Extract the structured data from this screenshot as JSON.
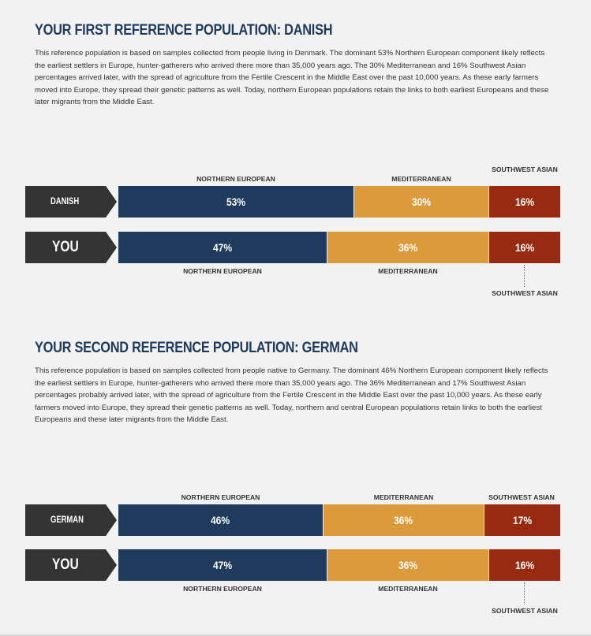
{
  "section1": {
    "heading": "YOUR FIRST REFERENCE POPULATION: DANISH",
    "paragraph": "This reference population is based on samples collected from people living in Denmark. The dominant 53% Northern European component likely reflects the earliest settlers in Europe, hunter-gatherers who arrived there more than 35,000 years ago. The 30% Mediterranean and 16% Southwest Asian percentages arrived later, with the spread of agriculture from the Fertile Crescent in the Middle East over the past 10,000 years.  As these early farmers moved into Europe, they spread their genetic patterns as well.  Today, northern European populations retain the links to both earliest Europeans and these later migrants from the Middle East.",
    "top_labels": {
      "northern": "NORTHERN EUROPEAN",
      "mediterranean": "MEDITERRANEAN",
      "southwest": "SOUTHWEST ASIAN"
    },
    "reference_bar": {
      "label": "DANISH",
      "northern": "53%",
      "mediterranean": "30%",
      "southwest": "16%"
    },
    "you_bar": {
      "label": "YOU",
      "northern": "47%",
      "mediterranean": "36%",
      "southwest": "16%"
    },
    "bottom_labels": {
      "northern": "NORTHERN EUROPEAN",
      "mediterranean": "MEDITERRANEAN",
      "southwest": "SOUTHWEST ASIAN"
    }
  },
  "section2": {
    "heading": "YOUR SECOND REFERENCE POPULATION: GERMAN",
    "paragraph": "This reference population is based on samples collected from people native to Germany. The dominant 46% Northern European component likely reflects the earliest settlers in Europe, hunter-gatherers who arrived there more than 35,000 years ago. The 36% Mediterranean and 17% Southwest Asian percentages probably arrived later, with the spread of agriculture from the Fertile Crescent in the Middle East over the past 10,000 years. As these early farmers moved into Europe, they spread their genetic patterns as well. Today, northern and central European populations retain links to both the earliest Europeans and these later migrants from the Middle East.",
    "top_labels": {
      "northern": "NORTHERN EUROPEAN",
      "mediterranean": "MEDITERRANEAN",
      "southwest": "SOUTHWEST ASIAN"
    },
    "reference_bar": {
      "label": "GERMAN",
      "northern": "46%",
      "mediterranean": "36%",
      "southwest": "17%"
    },
    "you_bar": {
      "label": "YOU",
      "northern": "47%",
      "mediterranean": "36%",
      "southwest": "16%"
    },
    "bottom_labels": {
      "northern": "NORTHERN EUROPEAN",
      "mediterranean": "MEDITERRANEAN",
      "southwest": "SOUTHWEST ASIAN"
    }
  },
  "colors": {
    "northern_european": "#1e3a5c",
    "mediterranean": "#db9b3b",
    "southwest_asian": "#992a12",
    "label_tag": "#333333"
  }
}
